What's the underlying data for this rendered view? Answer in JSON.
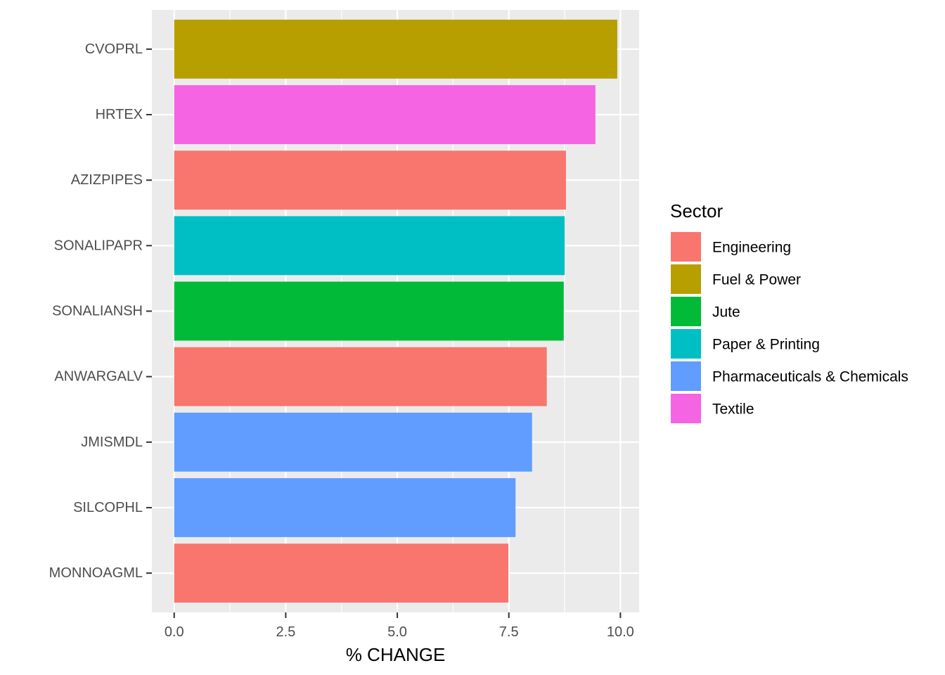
{
  "chart_data": {
    "type": "bar",
    "orientation": "horizontal",
    "categories": [
      "CVOPRL",
      "HRTEX",
      "AZIZPIPES",
      "SONALIPAPR",
      "SONALIANSH",
      "ANWARGALV",
      "JMISMDL",
      "SILCOPHL",
      "MONNOAGML"
    ],
    "values": [
      9.93,
      9.44,
      8.78,
      8.75,
      8.73,
      8.35,
      8.02,
      7.65,
      7.49
    ],
    "sectors": [
      "Fuel & Power",
      "Textile",
      "Engineering",
      "Paper & Printing",
      "Jute",
      "Engineering",
      "Pharmaceuticals & Chemicals",
      "Pharmaceuticals & Chemicals",
      "Engineering"
    ],
    "xlabel": "% CHANGE",
    "ylabel": "",
    "xlim": [
      -0.5,
      10.42
    ],
    "x_ticks": [
      "0.0",
      "2.5",
      "5.0",
      "7.5",
      "10.0"
    ],
    "grid": true,
    "legend": {
      "title": "Sector",
      "placement": "right",
      "entries": [
        {
          "name": "Engineering",
          "color": "#F8766D"
        },
        {
          "name": "Fuel & Power",
          "color": "#B79F00"
        },
        {
          "name": "Jute",
          "color": "#00BA38"
        },
        {
          "name": "Paper & Printing",
          "color": "#00BFC4"
        },
        {
          "name": "Pharmaceuticals & Chemicals",
          "color": "#619CFF"
        },
        {
          "name": "Textile",
          "color": "#F564E3"
        }
      ]
    },
    "panel_color": "#EBEBEB",
    "grid_color": "#FFFFFF"
  }
}
